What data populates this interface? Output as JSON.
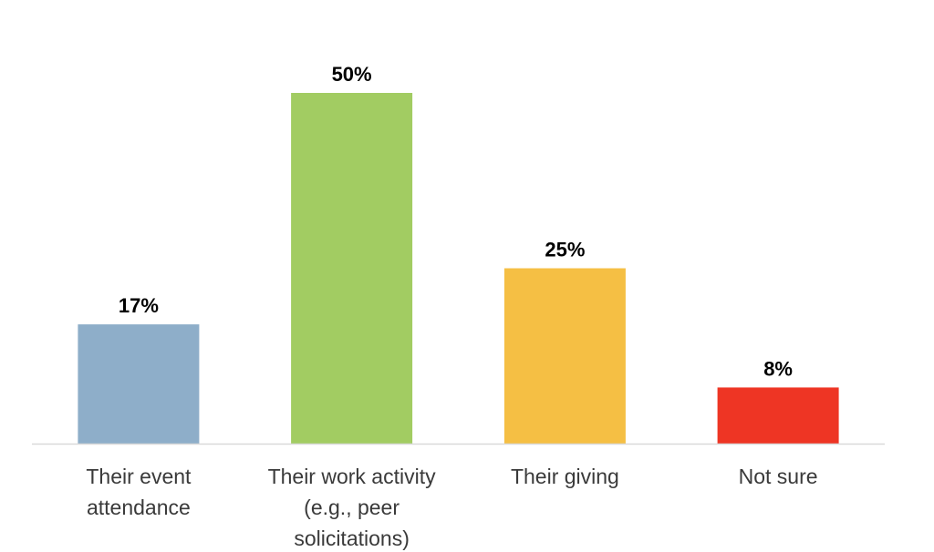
{
  "chart_data": {
    "type": "bar",
    "title": "",
    "xlabel": "",
    "ylabel": "",
    "ylim": [
      0,
      50
    ],
    "grid": false,
    "legend": "none",
    "categories": [
      [
        "Their event",
        "attendance"
      ],
      [
        "Their work activity",
        "(e.g., peer",
        "solicitations)"
      ],
      [
        "Their giving"
      ],
      [
        "Not sure"
      ]
    ],
    "values": [
      17,
      50,
      25,
      8
    ],
    "value_labels": [
      "17%",
      "50%",
      "25%",
      "8%"
    ],
    "colors": [
      "#8eaec9",
      "#a2cc62",
      "#f5bf44",
      "#ee3524"
    ],
    "axis_color": "#d9d9d9"
  }
}
